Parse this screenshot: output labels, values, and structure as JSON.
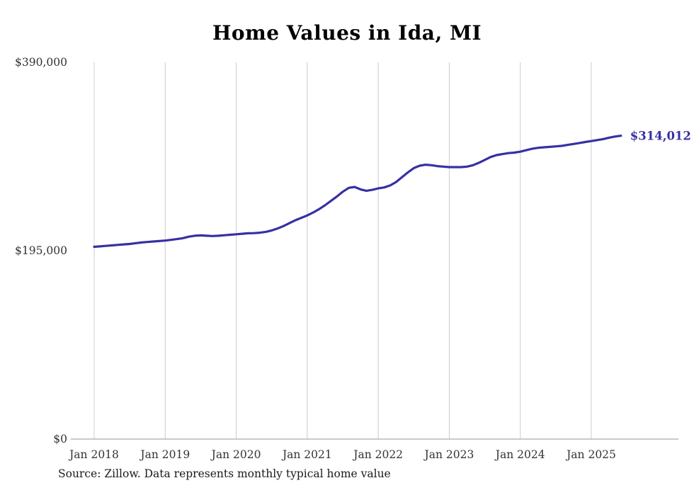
{
  "chart": {
    "title": "Home Values in Ida, MI",
    "source": "Source: Zillow. Data represents monthly typical home value",
    "end_label": "$314,012",
    "line_color": "#3730a3",
    "grid_color": "#cccccc",
    "axis_color": "#aaaaaa",
    "text_color": "#333333"
  },
  "chart_data": {
    "type": "line",
    "title": "Home Values in Ida, MI",
    "xlabel": "",
    "ylabel": "",
    "ylim": [
      0,
      390000
    ],
    "y_ticks": [
      0,
      195000,
      390000
    ],
    "y_tick_labels": [
      "$0",
      "$195,000",
      "$390,000"
    ],
    "x_tick_labels": [
      "Jan 2018",
      "Jan 2019",
      "Jan 2020",
      "Jan 2021",
      "Jan 2022",
      "Jan 2023",
      "Jan 2024",
      "Jan 2025"
    ],
    "x_months_per_tick": 12,
    "grid": "vertical-only",
    "legend": "none",
    "end_value": 314012,
    "series": [
      {
        "name": "Monthly typical home value",
        "start_month": "2018-01",
        "monthly_values": [
          199000,
          199500,
          200000,
          200500,
          201000,
          201500,
          202000,
          202800,
          203500,
          204000,
          204500,
          205000,
          205500,
          206200,
          207000,
          208000,
          209500,
          210500,
          210800,
          210500,
          210200,
          210500,
          211000,
          211500,
          212000,
          212500,
          213000,
          213200,
          213600,
          214500,
          216000,
          218000,
          220500,
          223500,
          226500,
          229000,
          231500,
          234500,
          238000,
          242000,
          246500,
          251000,
          256000,
          260000,
          261000,
          258500,
          257000,
          258000,
          259500,
          260500,
          262500,
          266000,
          271000,
          276000,
          280500,
          283000,
          284000,
          283500,
          282500,
          282000,
          281500,
          281500,
          281500,
          282000,
          283500,
          286000,
          289000,
          292000,
          294000,
          295000,
          296000,
          296500,
          297500,
          299000,
          300500,
          301500,
          302000,
          302500,
          303000,
          303500,
          304500,
          305500,
          306500,
          307500,
          308500,
          309500,
          310500,
          312000,
          313200,
          314012
        ]
      }
    ]
  }
}
